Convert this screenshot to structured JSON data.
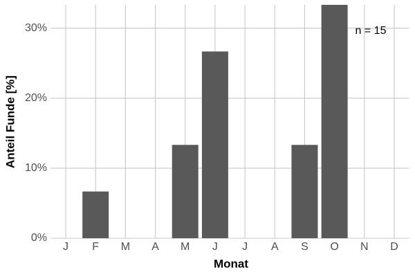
{
  "chart_data": {
    "type": "bar",
    "x_label": "Monat",
    "y_label": "Anteil Funde [%]",
    "annotation": "n = 15",
    "categories": [
      "J",
      "F",
      "M",
      "A",
      "M",
      "J",
      "J",
      "A",
      "S",
      "O",
      "N",
      "D"
    ],
    "values": [
      0,
      6.67,
      0,
      0,
      13.33,
      26.67,
      0,
      0,
      13.33,
      33.33,
      0,
      0
    ],
    "color": "#595959",
    "ylim": [
      0,
      33.33
    ],
    "yticks": [
      {
        "value": 0,
        "label": "0%"
      },
      {
        "value": 10,
        "label": "10%"
      },
      {
        "value": 20,
        "label": "20%"
      },
      {
        "value": 30,
        "label": "30%"
      }
    ],
    "grid": true
  }
}
